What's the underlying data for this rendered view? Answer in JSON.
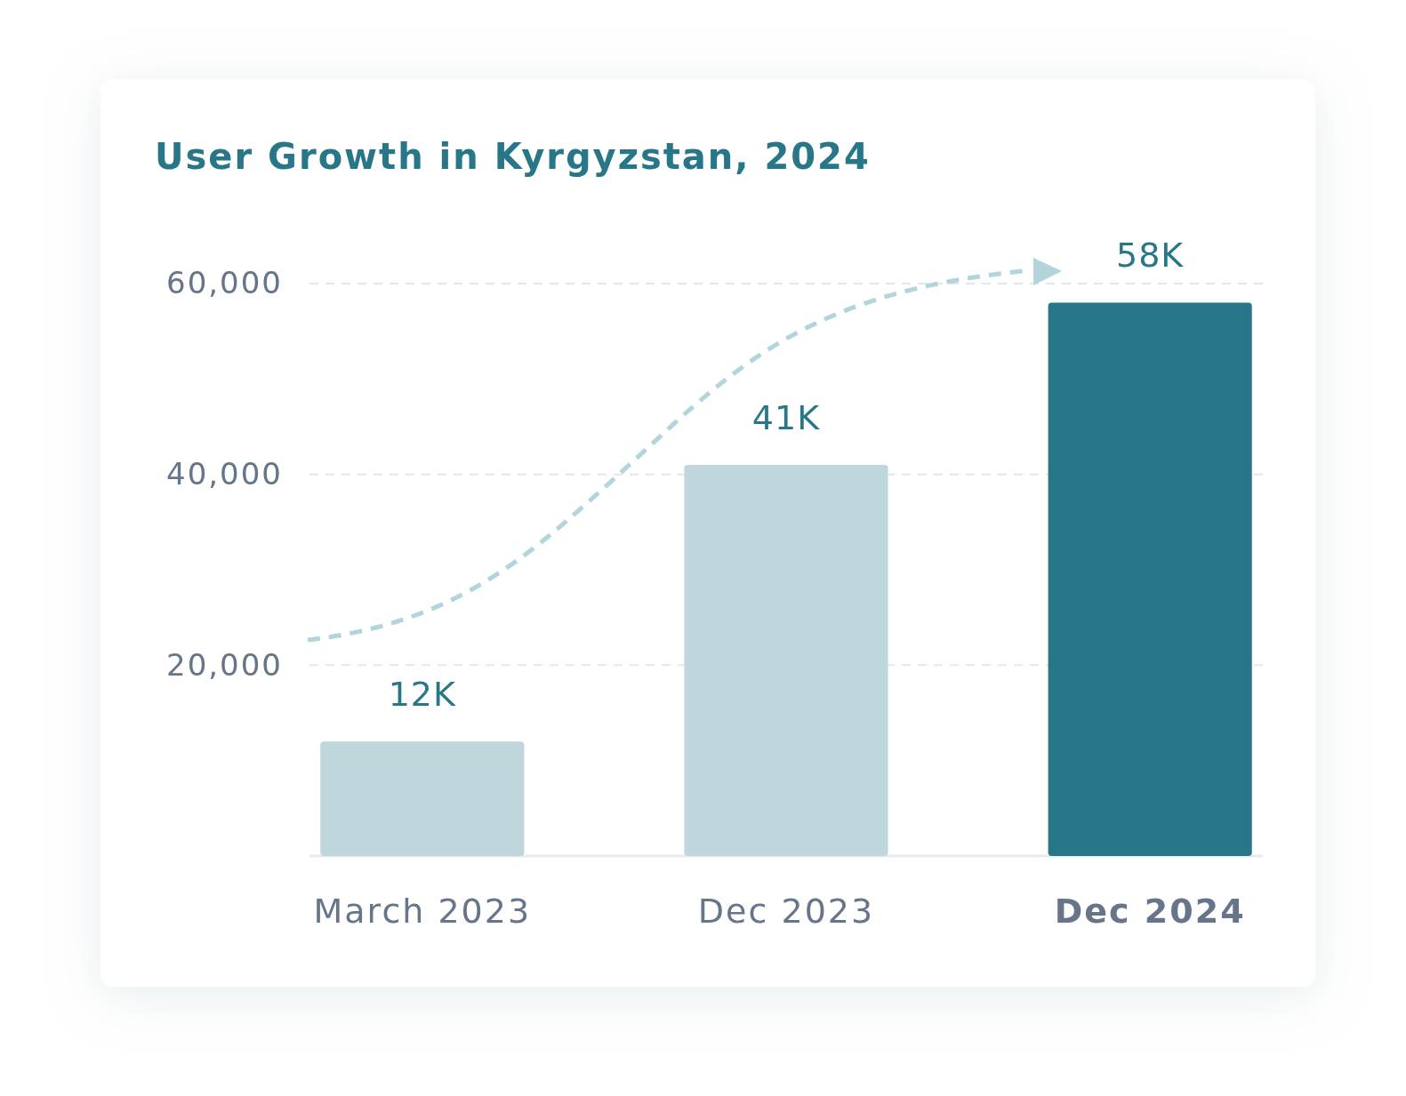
{
  "chart_data": {
    "type": "bar",
    "title": "User Growth in Kyrgyzstan, 2024",
    "categories": [
      "March 2023",
      "Dec 2023",
      "Dec 2024"
    ],
    "values": [
      12000,
      41000,
      58000
    ],
    "colors": [
      "#bed6dc",
      "#bed6dc",
      "#277788"
    ],
    "value_labels": [
      "12K",
      "41K",
      "58K"
    ],
    "ylim": [
      0,
      60000
    ],
    "yticks": [
      {
        "value": 20000,
        "label": "20,000"
      },
      {
        "value": 40000,
        "label": "40,000"
      },
      {
        "value": 60000,
        "label": "60,000"
      }
    ],
    "grid": "y"
  }
}
